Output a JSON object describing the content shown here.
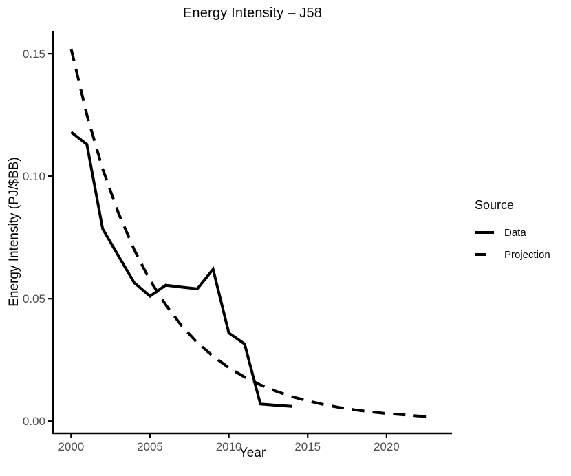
{
  "chart": {
    "title": "Energy Intensity – J58",
    "xlabel": "Year",
    "ylabel": "Energy Intensity (PJ/$BB)"
  },
  "legend": {
    "title": "Source",
    "items": [
      {
        "label": "Data",
        "style": "solid"
      },
      {
        "label": "Projection",
        "style": "dashed"
      }
    ]
  },
  "colors": {
    "line": "#000000",
    "axis": "#000000",
    "tick_label": "#4d4d4d",
    "background": "#ffffff"
  },
  "chart_data": {
    "type": "line",
    "title": "Energy Intensity – J58",
    "xlabel": "Year",
    "ylabel": "Energy Intensity (PJ/$BB)",
    "xlim": [
      1998.85,
      2024.15
    ],
    "ylim": [
      -0.005,
      0.1593
    ],
    "grid": false,
    "legend_position": "right",
    "x_ticks": [
      2000,
      2005,
      2010,
      2015,
      2020
    ],
    "x_tick_labels": [
      "2000",
      "2005",
      "2010",
      "2015",
      "2020"
    ],
    "y_ticks": [
      0.0,
      0.05,
      0.1,
      0.15
    ],
    "y_tick_labels": [
      "0.00",
      "0.05",
      "0.10",
      "0.15"
    ],
    "series": [
      {
        "name": "Data",
        "dashed": false,
        "x": [
          2000,
          2001,
          2002,
          2003,
          2004,
          2005,
          2006,
          2007,
          2008,
          2009,
          2010,
          2011,
          2012,
          2013,
          2014
        ],
        "values": [
          0.118,
          0.113,
          0.0785,
          0.0675,
          0.0565,
          0.051,
          0.0555,
          0.0547,
          0.054,
          0.062,
          0.036,
          0.0315,
          0.007,
          0.0065,
          0.006
        ]
      },
      {
        "name": "Projection",
        "dashed": true,
        "x": [
          2000,
          2001,
          2002,
          2003,
          2004,
          2005,
          2006,
          2007,
          2008,
          2009,
          2010,
          2011,
          2012,
          2013,
          2014,
          2015,
          2016,
          2017,
          2018,
          2019,
          2020,
          2021,
          2022,
          2023
        ],
        "values": [
          0.152,
          0.125,
          0.103,
          0.085,
          0.07,
          0.0575,
          0.0475,
          0.039,
          0.032,
          0.0265,
          0.0218,
          0.018,
          0.0148,
          0.0122,
          0.01,
          0.0083,
          0.0068,
          0.0056,
          0.0046,
          0.0038,
          0.0031,
          0.0026,
          0.0021,
          0.0018
        ]
      }
    ]
  }
}
